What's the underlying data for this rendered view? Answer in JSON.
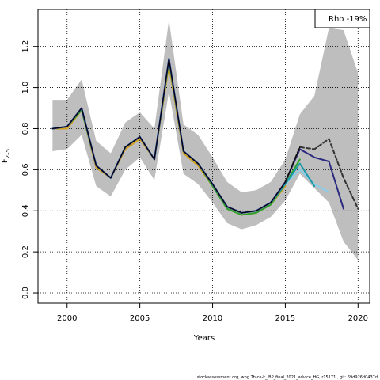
{
  "chart_data": {
    "type": "line",
    "title": "",
    "xlabel": "Years",
    "ylabel": "F",
    "ylabel_subscript": "2–5",
    "xlim": [
      1998,
      2020.8
    ],
    "ylim": [
      -0.05,
      1.38
    ],
    "x_ticks": [
      2000,
      2005,
      2010,
      2015,
      2020
    ],
    "y_ticks": [
      0.0,
      0.2,
      0.4,
      0.6,
      0.8,
      1.0,
      1.2
    ],
    "y_tick_labels": [
      "0.0",
      "0.2",
      "0.4",
      "0.6",
      "0.8",
      "1.0",
      "1.2"
    ],
    "grid": true,
    "legend": {
      "text": "Rho -19%",
      "placement": "top-right"
    },
    "credit": "stockassessment.org, whg.7b-ce-k_IBP_final_2021_advice_HG, r15171 , git: 69d926d0437d",
    "band": {
      "color": "#bebebe",
      "x": [
        1999,
        2000,
        2001,
        2002,
        2003,
        2004,
        2005,
        2006,
        2007,
        2008,
        2009,
        2010,
        2011,
        2012,
        2013,
        2014,
        2015,
        2016,
        2017,
        2018,
        2019,
        2020
      ],
      "lower": [
        0.69,
        0.7,
        0.77,
        0.52,
        0.47,
        0.6,
        0.66,
        0.55,
        0.98,
        0.58,
        0.53,
        0.44,
        0.34,
        0.31,
        0.33,
        0.37,
        0.45,
        0.58,
        0.51,
        0.44,
        0.25,
        0.16
      ],
      "upper": [
        0.94,
        0.94,
        1.04,
        0.74,
        0.68,
        0.83,
        0.88,
        0.8,
        1.33,
        0.82,
        0.77,
        0.66,
        0.54,
        0.49,
        0.5,
        0.54,
        0.65,
        0.87,
        0.96,
        1.29,
        1.28,
        1.07
      ]
    },
    "series": [
      {
        "color": "#d4a017",
        "dashed": false,
        "x": [
          1999,
          2000,
          2001,
          2002,
          2003,
          2004,
          2005,
          2006,
          2007,
          2008,
          2009,
          2010,
          2011,
          2012,
          2013,
          2014,
          2015
        ],
        "values": [
          0.8,
          0.8,
          0.89,
          0.61,
          0.56,
          0.7,
          0.75,
          0.65,
          1.11,
          0.68,
          0.62,
          0.52,
          0.41,
          0.38,
          0.39,
          0.43,
          0.52
        ]
      },
      {
        "color": "#2ca02c",
        "dashed": false,
        "x": [
          1999,
          2000,
          2001,
          2002,
          2003,
          2004,
          2005,
          2006,
          2007,
          2008,
          2009,
          2010,
          2011,
          2012,
          2013,
          2014,
          2015,
          2016
        ],
        "values": [
          0.8,
          0.81,
          0.89,
          0.62,
          0.56,
          0.71,
          0.76,
          0.65,
          1.13,
          0.69,
          0.63,
          0.52,
          0.41,
          0.38,
          0.39,
          0.43,
          0.53,
          0.65
        ]
      },
      {
        "color": "#87ceeb",
        "dashed": false,
        "x": [
          1999,
          2000,
          2001,
          2002,
          2003,
          2004,
          2005,
          2006,
          2007,
          2008,
          2009,
          2010,
          2011,
          2012,
          2013,
          2014,
          2015,
          2016,
          2017,
          2018
        ],
        "values": [
          0.8,
          0.81,
          0.9,
          0.62,
          0.56,
          0.71,
          0.76,
          0.65,
          1.14,
          0.69,
          0.63,
          0.53,
          0.42,
          0.39,
          0.4,
          0.44,
          0.53,
          0.6,
          0.53,
          0.49
        ]
      },
      {
        "color": "#1a9aa8",
        "dashed": false,
        "x": [
          1999,
          2000,
          2001,
          2002,
          2003,
          2004,
          2005,
          2006,
          2007,
          2008,
          2009,
          2010,
          2011,
          2012,
          2013,
          2014,
          2015,
          2016,
          2017
        ],
        "values": [
          0.8,
          0.81,
          0.9,
          0.62,
          0.56,
          0.71,
          0.76,
          0.65,
          1.14,
          0.69,
          0.63,
          0.53,
          0.42,
          0.39,
          0.4,
          0.44,
          0.53,
          0.63,
          0.52
        ]
      },
      {
        "color": "#2a2a80",
        "dashed": false,
        "x": [
          1999,
          2000,
          2001,
          2002,
          2003,
          2004,
          2005,
          2006,
          2007,
          2008,
          2009,
          2010,
          2011,
          2012,
          2013,
          2014,
          2015,
          2016,
          2017,
          2018,
          2019
        ],
        "values": [
          0.8,
          0.81,
          0.9,
          0.62,
          0.56,
          0.71,
          0.76,
          0.65,
          1.14,
          0.69,
          0.63,
          0.53,
          0.42,
          0.39,
          0.4,
          0.44,
          0.54,
          0.7,
          0.66,
          0.64,
          0.41
        ]
      },
      {
        "color": "#333333",
        "dashed": true,
        "x": [
          2015,
          2016,
          2017,
          2018,
          2019,
          2020
        ],
        "values": [
          0.54,
          0.71,
          0.7,
          0.75,
          0.56,
          0.41
        ]
      },
      {
        "color": "#000000",
        "dashed": false,
        "x": [
          1999,
          2000,
          2001,
          2002,
          2003,
          2004,
          2005,
          2006,
          2007,
          2008,
          2009,
          2010,
          2011,
          2012,
          2013,
          2014,
          2015,
          2016
        ],
        "values": [
          0.8,
          0.81,
          0.9,
          0.62,
          0.56,
          0.71,
          0.76,
          0.65,
          1.14,
          0.69,
          0.63,
          0.53,
          0.42,
          0.39,
          0.4,
          0.44,
          0.54,
          0.71
        ]
      }
    ]
  }
}
